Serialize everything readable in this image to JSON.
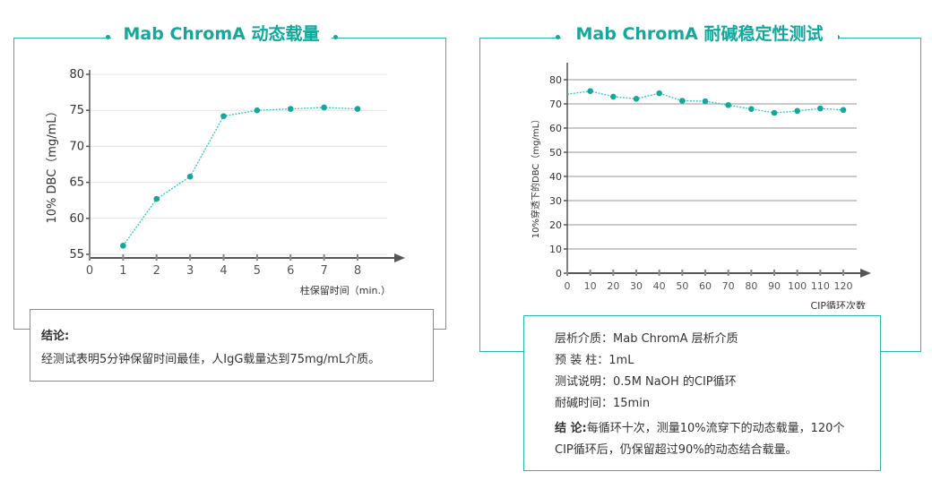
{
  "colors": {
    "accent": "#12a89c",
    "line": "#3cc4ba",
    "marker": "#12a89c",
    "axis": "#555555"
  },
  "left": {
    "title": "Mab ChromA 动态载量",
    "conclusion_label": "结论:",
    "conclusion_text": "经测试表明5分钟保留时间最佳，人IgG载量达到75mg/mL介质。"
  },
  "right": {
    "title": "Mab ChromA 耐碱稳定性测试",
    "info": [
      {
        "label": "层析介质：",
        "value": "Mab ChromA 层析介质"
      },
      {
        "label": "预 装 柱：",
        "value": "1mL"
      },
      {
        "label": "测试说明：",
        "value": "0.5M NaOH 的CIP循环"
      },
      {
        "label": "耐碱时间：",
        "value": "15min"
      }
    ],
    "conclusion_label": "结 论:",
    "conclusion_line1": "每循环十次，测量10%流穿下的动态载量，120个",
    "conclusion_line2": "CIP循环后，仍保留超过90%的动态结合载量。"
  },
  "chart_data": [
    {
      "type": "line",
      "ylabel": "10% DBC（mg/mL）",
      "xlabel": "柱保留时间（min.）",
      "xlim": [
        0,
        8
      ],
      "ylim": [
        55,
        80
      ],
      "x_ticks": [
        "0",
        "1",
        "2",
        "3",
        "4",
        "5",
        "6",
        "7",
        "8"
      ],
      "y_ticks": [
        "55",
        "60",
        "65",
        "70",
        "75",
        "80"
      ],
      "grid": true,
      "x": [
        1,
        2,
        3,
        4,
        5,
        6,
        7,
        8
      ],
      "y": [
        56.2,
        62.7,
        65.8,
        74.2,
        75.0,
        75.2,
        75.4,
        75.2
      ]
    },
    {
      "type": "line",
      "ylabel": "10%穿透下的DBC（mg/mL）",
      "xlabel": "CIP循环次数",
      "xlim": [
        0,
        120
      ],
      "ylim": [
        0,
        80
      ],
      "x_ticks": [
        "0",
        "10",
        "20",
        "30",
        "40",
        "50",
        "60",
        "70",
        "80",
        "90",
        "100",
        "110",
        "120"
      ],
      "y_ticks": [
        "0",
        "10",
        "20",
        "30",
        "40",
        "50",
        "60",
        "70",
        "80"
      ],
      "grid": true,
      "line_start": {
        "x": 0,
        "y": 74
      },
      "x": [
        10,
        20,
        30,
        40,
        50,
        60,
        70,
        80,
        90,
        100,
        110,
        120
      ],
      "y": [
        75.3,
        73.0,
        72.1,
        74.4,
        71.3,
        71.1,
        69.5,
        67.9,
        66.3,
        67.1,
        68.1,
        67.5
      ]
    }
  ]
}
